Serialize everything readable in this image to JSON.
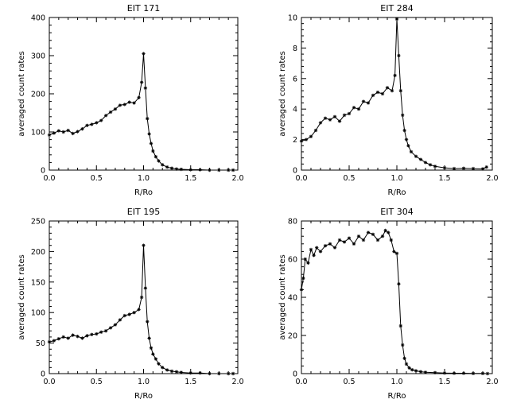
{
  "chart_data": [
    {
      "type": "line",
      "title": "EIT 171",
      "xlabel": "R/Ro",
      "ylabel": "averaged count rates",
      "xlim": [
        0,
        2
      ],
      "ylim": [
        0,
        400
      ],
      "xticks": [
        "0.0",
        "0.5",
        "1.0",
        "1.5",
        "2.0"
      ],
      "yticks": [
        "0",
        "100",
        "200",
        "300",
        "400"
      ],
      "marker": "asterisk",
      "series": [
        {
          "x": [
            0.0,
            0.05,
            0.1,
            0.15,
            0.2,
            0.25,
            0.3,
            0.35,
            0.4,
            0.45,
            0.5,
            0.55,
            0.6,
            0.65,
            0.7,
            0.75,
            0.8,
            0.85,
            0.9,
            0.95,
            0.98,
            1.0,
            1.02,
            1.04,
            1.06,
            1.08,
            1.1,
            1.13,
            1.16,
            1.2,
            1.25,
            1.3,
            1.35,
            1.4,
            1.5,
            1.6,
            1.7,
            1.8,
            1.9,
            1.95
          ],
          "y": [
            92,
            97,
            103,
            100,
            104,
            96,
            101,
            108,
            117,
            120,
            124,
            130,
            143,
            152,
            160,
            170,
            172,
            178,
            176,
            190,
            230,
            305,
            215,
            135,
            95,
            70,
            50,
            35,
            24,
            14,
            8,
            5,
            3,
            2,
            1,
            1,
            0,
            0,
            0,
            0
          ]
        }
      ]
    },
    {
      "type": "line",
      "title": "EIT 284",
      "xlabel": "R/Ro",
      "ylabel": "averaged count rates",
      "xlim": [
        0,
        2
      ],
      "ylim": [
        0,
        10
      ],
      "xticks": [
        "0.0",
        "0.5",
        "1.0",
        "1.5",
        "2.0"
      ],
      "yticks": [
        "0",
        "2",
        "4",
        "6",
        "8",
        "10"
      ],
      "marker": "asterisk",
      "series": [
        {
          "x": [
            0.0,
            0.05,
            0.1,
            0.15,
            0.2,
            0.25,
            0.3,
            0.35,
            0.4,
            0.45,
            0.5,
            0.55,
            0.6,
            0.65,
            0.7,
            0.75,
            0.8,
            0.85,
            0.9,
            0.95,
            0.98,
            1.0,
            1.02,
            1.04,
            1.06,
            1.08,
            1.1,
            1.12,
            1.15,
            1.2,
            1.25,
            1.3,
            1.35,
            1.4,
            1.5,
            1.6,
            1.7,
            1.8,
            1.9,
            1.94
          ],
          "y": [
            1.9,
            2.0,
            2.2,
            2.6,
            3.1,
            3.4,
            3.3,
            3.5,
            3.2,
            3.6,
            3.7,
            4.1,
            4.0,
            4.5,
            4.4,
            4.9,
            5.1,
            5.0,
            5.4,
            5.2,
            6.2,
            9.9,
            7.5,
            5.2,
            3.6,
            2.6,
            2.0,
            1.6,
            1.2,
            0.9,
            0.7,
            0.5,
            0.35,
            0.25,
            0.15,
            0.1,
            0.12,
            0.1,
            0.08,
            0.2
          ]
        }
      ]
    },
    {
      "type": "line",
      "title": "EIT 195",
      "xlabel": "R/Ro",
      "ylabel": "averaged count rates",
      "xlim": [
        0,
        2
      ],
      "ylim": [
        0,
        250
      ],
      "xticks": [
        "0.0",
        "0.5",
        "1.0",
        "1.5",
        "2.0"
      ],
      "yticks": [
        "0",
        "50",
        "100",
        "150",
        "200",
        "250"
      ],
      "marker": "asterisk",
      "series": [
        {
          "x": [
            0.0,
            0.05,
            0.1,
            0.15,
            0.2,
            0.25,
            0.3,
            0.35,
            0.4,
            0.45,
            0.5,
            0.55,
            0.6,
            0.65,
            0.7,
            0.75,
            0.8,
            0.85,
            0.9,
            0.95,
            0.98,
            1.0,
            1.02,
            1.04,
            1.06,
            1.08,
            1.1,
            1.13,
            1.16,
            1.2,
            1.25,
            1.3,
            1.35,
            1.4,
            1.5,
            1.6,
            1.7,
            1.8,
            1.9,
            1.95
          ],
          "y": [
            52,
            54,
            57,
            60,
            58,
            63,
            61,
            58,
            62,
            64,
            65,
            68,
            70,
            75,
            80,
            88,
            95,
            97,
            100,
            105,
            125,
            210,
            140,
            85,
            58,
            42,
            32,
            24,
            16,
            10,
            6,
            4,
            3,
            2,
            1,
            1,
            0,
            0,
            0,
            0
          ]
        }
      ]
    },
    {
      "type": "line",
      "title": "EIT 304",
      "xlabel": "R/Ro",
      "ylabel": "averaged count rates",
      "xlim": [
        0,
        2
      ],
      "ylim": [
        0,
        80
      ],
      "xticks": [
        "0.0",
        "0.5",
        "1.0",
        "1.5",
        "2.0"
      ],
      "yticks": [
        "0",
        "20",
        "40",
        "60",
        "80"
      ],
      "marker": "asterisk",
      "series": [
        {
          "x": [
            0.0,
            0.02,
            0.04,
            0.07,
            0.1,
            0.13,
            0.16,
            0.2,
            0.25,
            0.3,
            0.35,
            0.4,
            0.45,
            0.5,
            0.55,
            0.6,
            0.65,
            0.7,
            0.75,
            0.8,
            0.85,
            0.88,
            0.91,
            0.94,
            0.97,
            1.0,
            1.02,
            1.04,
            1.06,
            1.08,
            1.1,
            1.13,
            1.16,
            1.2,
            1.25,
            1.3,
            1.4,
            1.5,
            1.6,
            1.7,
            1.8,
            1.9,
            1.95
          ],
          "y": [
            44,
            50,
            60,
            58,
            65,
            62,
            66,
            64,
            67,
            68,
            66,
            70,
            69,
            71,
            68,
            72,
            70,
            74,
            73,
            70,
            72,
            75,
            74,
            70,
            64,
            63,
            47,
            25,
            15,
            8,
            5,
            3,
            2,
            1.5,
            1,
            0.7,
            0.5,
            0.3,
            0.2,
            0.2,
            0.1,
            0.1,
            0
          ]
        }
      ]
    }
  ]
}
